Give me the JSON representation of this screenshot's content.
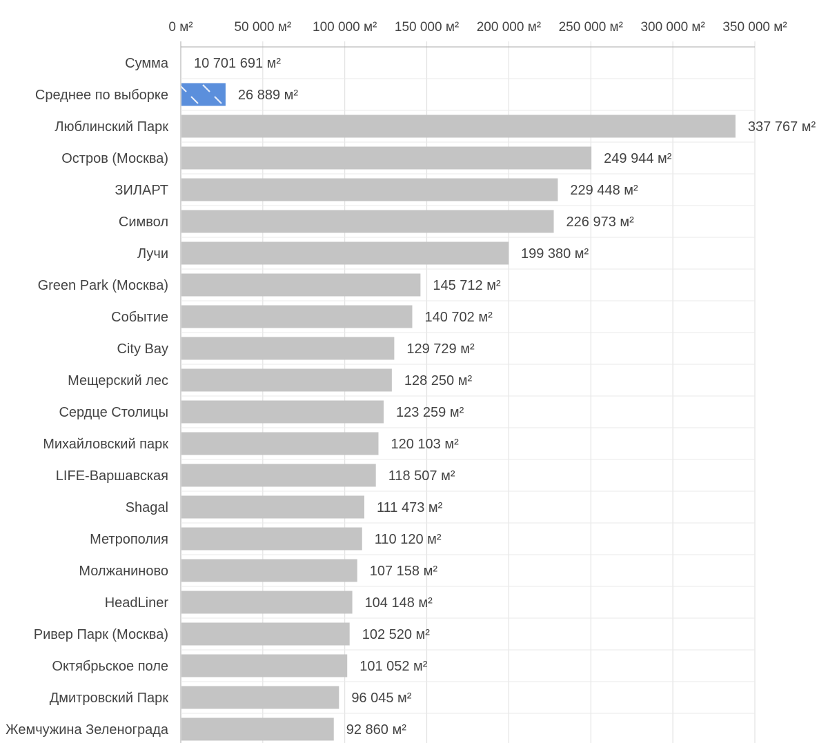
{
  "chart_data": {
    "type": "bar",
    "orientation": "horizontal",
    "title": "",
    "xlabel": "",
    "ylabel": "",
    "unit": "м²",
    "xlim": [
      0,
      350000
    ],
    "x_ticks": [
      {
        "value": 0,
        "label": "0 м²"
      },
      {
        "value": 50000,
        "label": "50 000 м²"
      },
      {
        "value": 100000,
        "label": "100 000 м²"
      },
      {
        "value": 150000,
        "label": "150 000 м²"
      },
      {
        "value": 200000,
        "label": "200 000 м²"
      },
      {
        "value": 250000,
        "label": "250 000 м²"
      },
      {
        "value": 300000,
        "label": "300 000 м²"
      },
      {
        "value": 350000,
        "label": "350 000 м²"
      }
    ],
    "axis_position": "top",
    "grid": true,
    "colors": {
      "bar": "#c4c4c4",
      "highlight": "#5b8fdc",
      "grid": "#dddddd",
      "axis": "#aaaaaa",
      "text": "#444444"
    },
    "rows": [
      {
        "category": "Сумма",
        "value": 10701691,
        "label": "10 701 691 м²",
        "bar": false
      },
      {
        "category": "Среднее по выборке",
        "value": 26889,
        "label": "26 889 м²",
        "highlight": true
      },
      {
        "category": "Люблинский Парк",
        "value": 337767,
        "label": "337 767 м²"
      },
      {
        "category": "Остров (Москва)",
        "value": 249944,
        "label": "249 944 м²"
      },
      {
        "category": "ЗИЛАРТ",
        "value": 229448,
        "label": "229 448 м²"
      },
      {
        "category": "Символ",
        "value": 226973,
        "label": "226 973 м²"
      },
      {
        "category": "Лучи",
        "value": 199380,
        "label": "199 380 м²"
      },
      {
        "category": "Green Park (Москва)",
        "value": 145712,
        "label": "145 712 м²"
      },
      {
        "category": "Событие",
        "value": 140702,
        "label": "140 702 м²"
      },
      {
        "category": "City Bay",
        "value": 129729,
        "label": "129 729 м²"
      },
      {
        "category": "Мещерский лес",
        "value": 128250,
        "label": "128 250 м²"
      },
      {
        "category": "Сердце Столицы",
        "value": 123259,
        "label": "123 259 м²"
      },
      {
        "category": "Михайловский парк",
        "value": 120103,
        "label": "120 103 м²"
      },
      {
        "category": "LIFE-Варшавская",
        "value": 118507,
        "label": "118 507 м²"
      },
      {
        "category": "Shagal",
        "value": 111473,
        "label": "111 473 м²"
      },
      {
        "category": "Метрополия",
        "value": 110120,
        "label": "110 120 м²"
      },
      {
        "category": "Молжаниново",
        "value": 107158,
        "label": "107 158 м²"
      },
      {
        "category": "HeadLiner",
        "value": 104148,
        "label": "104 148 м²"
      },
      {
        "category": "Ривер Парк (Москва)",
        "value": 102520,
        "label": "102 520 м²"
      },
      {
        "category": "Октябрьское поле",
        "value": 101052,
        "label": "101 052 м²"
      },
      {
        "category": "Дмитровский Парк",
        "value": 96045,
        "label": "96 045 м²"
      },
      {
        "category": "Жемчужина Зеленограда",
        "value": 92860,
        "label": "92 860 м²"
      }
    ]
  }
}
